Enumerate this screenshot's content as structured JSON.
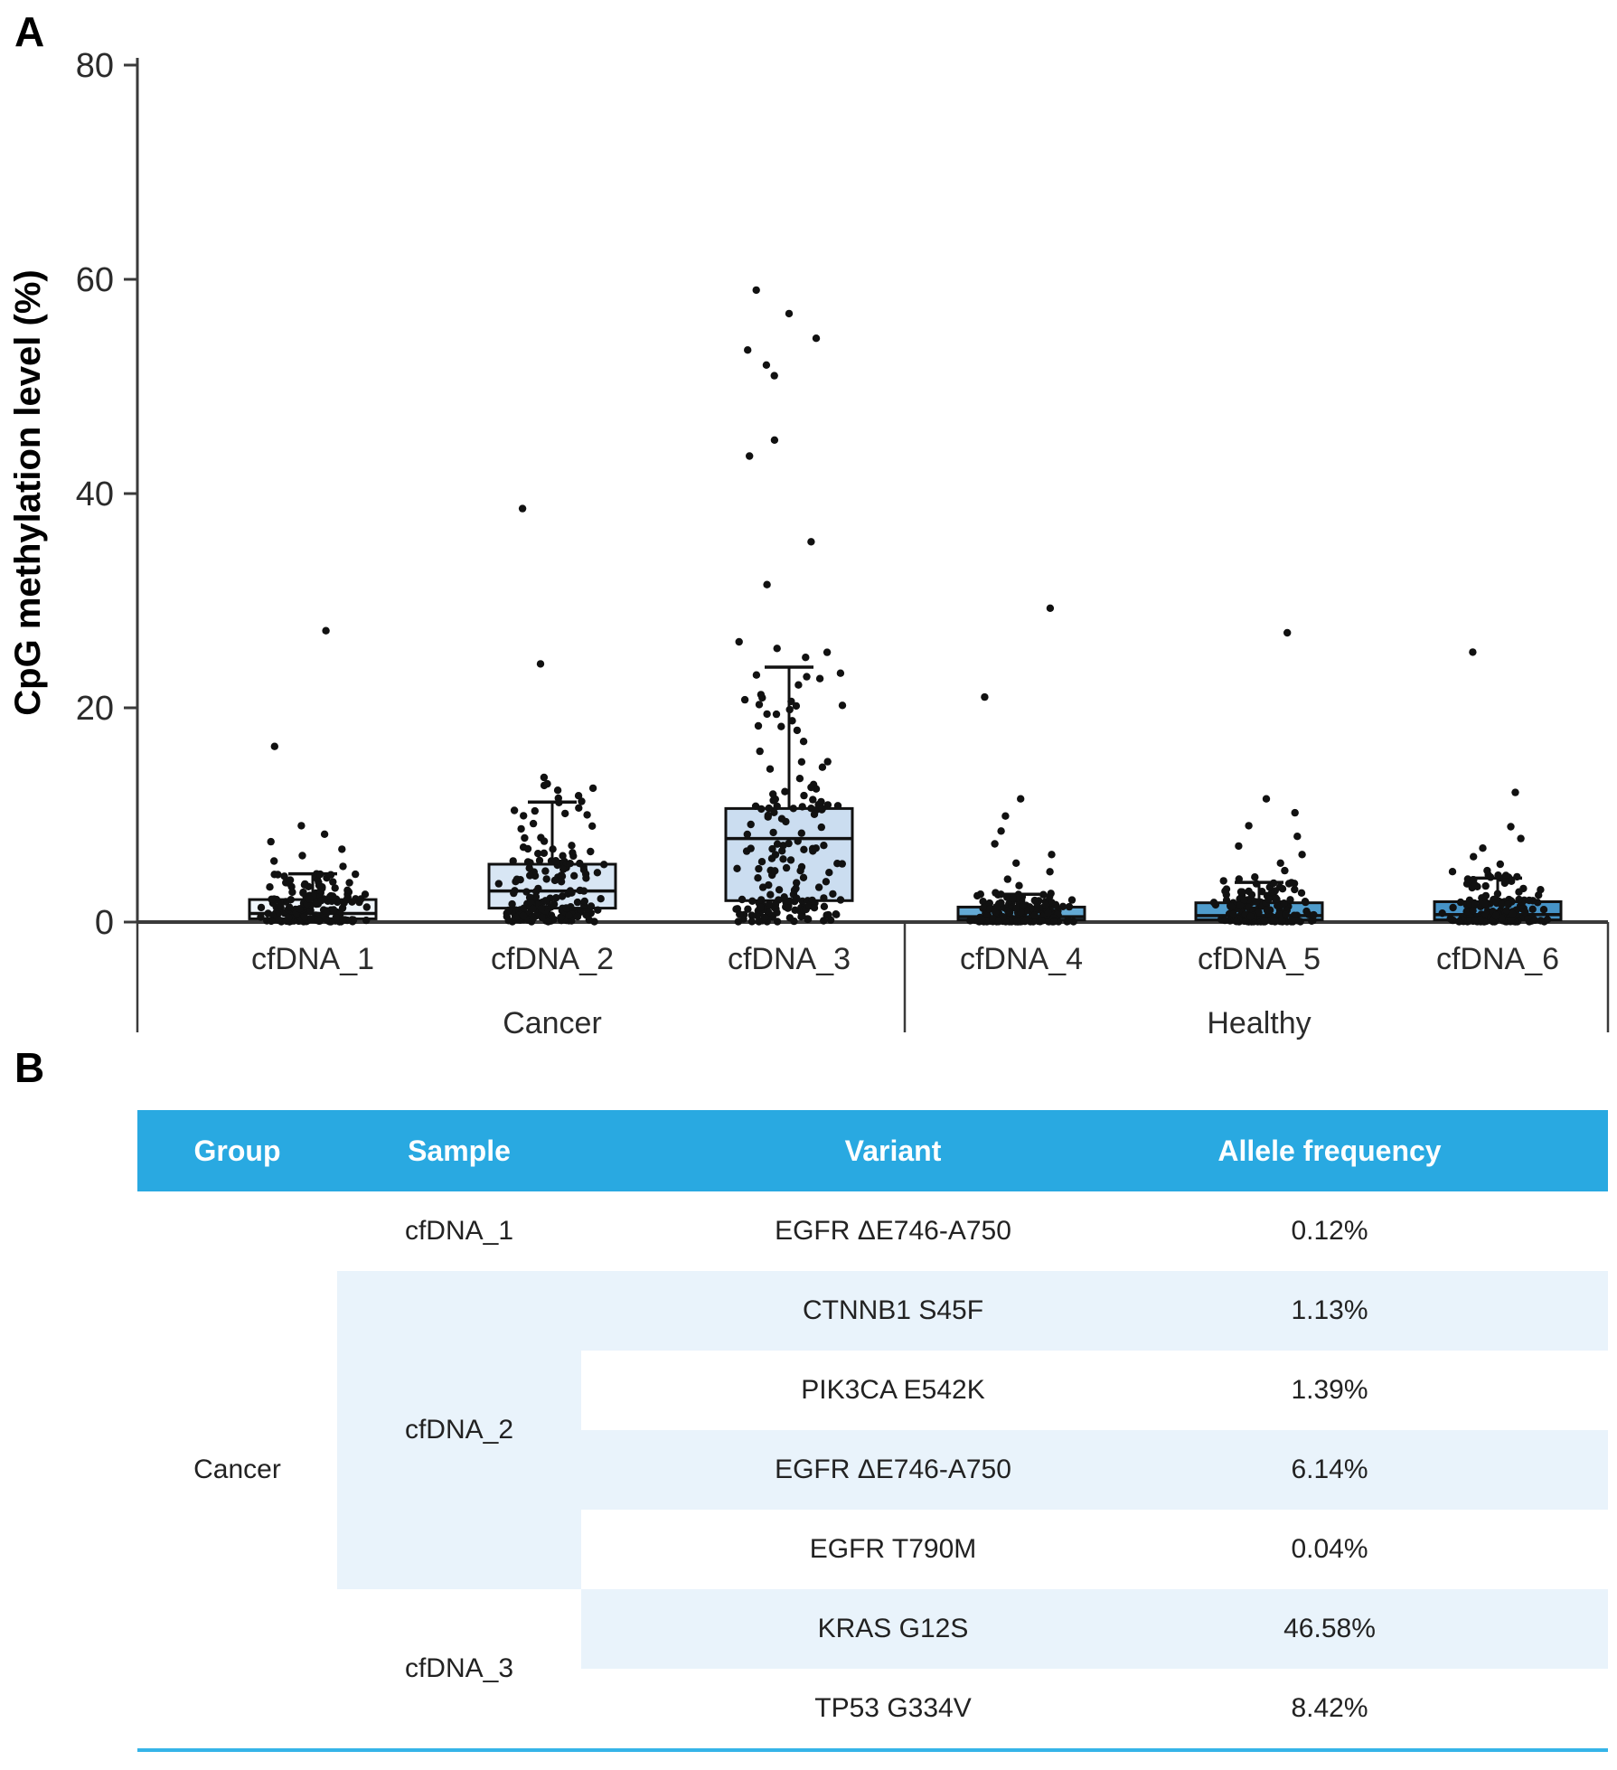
{
  "panel_a_label": "A",
  "panel_b_label": "B",
  "chart_data": {
    "type": "box",
    "title": "",
    "xlabel": "",
    "ylabel": "CpG methylation level (%)",
    "ylim": [
      0,
      80
    ],
    "yticks": [
      0,
      20,
      40,
      60,
      80
    ],
    "grid": false,
    "legend_position": "none",
    "point_color": "#111111",
    "axis_color": "#3a3a3a",
    "groups": [
      {
        "label": "Cancer",
        "samples": [
          "cfDNA_1",
          "cfDNA_2",
          "cfDNA_3"
        ]
      },
      {
        "label": "Healthy",
        "samples": [
          "cfDNA_4",
          "cfDNA_5",
          "cfDNA_6"
        ]
      }
    ],
    "series": [
      {
        "name": "cfDNA_1",
        "group": "Cancer",
        "q1": 0.3,
        "median": 0.8,
        "q3": 2.1,
        "whisker_low": 0,
        "whisker_high": 4.5,
        "outliers": [
          27.2,
          16.4,
          9.0,
          8.2,
          7.5,
          6.8,
          6.2,
          5.7,
          5.2
        ],
        "n_points": 175,
        "box_color": "#F0F6FC"
      },
      {
        "name": "cfDNA_2",
        "group": "Cancer",
        "q1": 1.3,
        "median": 2.9,
        "q3": 5.4,
        "whisker_low": 0.1,
        "whisker_high": 11.2,
        "outliers": [
          38.6,
          24.1,
          13.5,
          12.9,
          12.3,
          11.8
        ],
        "n_points": 185,
        "box_color": "#D8E6F4"
      },
      {
        "name": "cfDNA_3",
        "group": "Cancer",
        "q1": 2.0,
        "median": 7.8,
        "q3": 10.6,
        "whisker_low": 0.1,
        "whisker_high": 23.8,
        "outliers": [
          59.0,
          56.8,
          54.5,
          53.4,
          52.0,
          51.0,
          45.0,
          43.5,
          35.5,
          31.5
        ],
        "n_points": 190,
        "box_color": "#CBDDF0"
      },
      {
        "name": "cfDNA_4",
        "group": "Healthy",
        "q1": 0.2,
        "median": 0.5,
        "q3": 1.4,
        "whisker_low": 0,
        "whisker_high": 2.6,
        "outliers": [
          29.3,
          21.0,
          11.5,
          9.9,
          8.5,
          7.3,
          6.3,
          5.5,
          4.7,
          4.0,
          3.4
        ],
        "n_points": 175,
        "box_color": "#63A9D4"
      },
      {
        "name": "cfDNA_5",
        "group": "Healthy",
        "q1": 0.2,
        "median": 0.6,
        "q3": 1.8,
        "whisker_low": 0,
        "whisker_high": 3.7,
        "outliers": [
          27.0,
          11.5,
          10.2,
          9.0,
          8.0,
          7.1,
          6.3,
          5.5,
          4.8,
          4.2
        ],
        "n_points": 175,
        "box_color": "#4F9CCC"
      },
      {
        "name": "cfDNA_6",
        "group": "Healthy",
        "q1": 0.2,
        "median": 0.7,
        "q3": 1.9,
        "whisker_low": 0,
        "whisker_high": 4.1,
        "outliers": [
          25.2,
          12.1,
          8.9,
          7.8,
          6.9,
          6.1,
          5.4,
          4.8
        ],
        "n_points": 175,
        "box_color": "#4693C7"
      }
    ]
  },
  "table": {
    "header_bg": "#29A9E1",
    "stripe_bg": "#E9F3FB",
    "bottom_line_color": "#35B4E8",
    "columns": [
      "Group",
      "Sample",
      "Variant",
      "Allele frequency"
    ],
    "group_cell": "Cancer",
    "sample_cells": [
      {
        "label": "cfDNA_1",
        "row_start": 1,
        "row_span": 1,
        "striped": false
      },
      {
        "label": "cfDNA_2",
        "row_start": 2,
        "row_span": 4,
        "striped": true
      },
      {
        "label": "cfDNA_3",
        "row_start": 6,
        "row_span": 2,
        "striped": false
      }
    ],
    "rows": [
      {
        "variant": "EGFR ΔE746-A750",
        "allele_frequency": "0.12%",
        "striped": false
      },
      {
        "variant": "CTNNB1 S45F",
        "allele_frequency": "1.13%",
        "striped": true
      },
      {
        "variant": "PIK3CA E542K",
        "allele_frequency": "1.39%",
        "striped": false
      },
      {
        "variant": "EGFR ΔE746-A750",
        "allele_frequency": "6.14%",
        "striped": true
      },
      {
        "variant": "EGFR T790M",
        "allele_frequency": "0.04%",
        "striped": false
      },
      {
        "variant": "KRAS G12S",
        "allele_frequency": "46.58%",
        "striped": true
      },
      {
        "variant": "TP53 G334V",
        "allele_frequency": "8.42%",
        "striped": false
      }
    ]
  }
}
